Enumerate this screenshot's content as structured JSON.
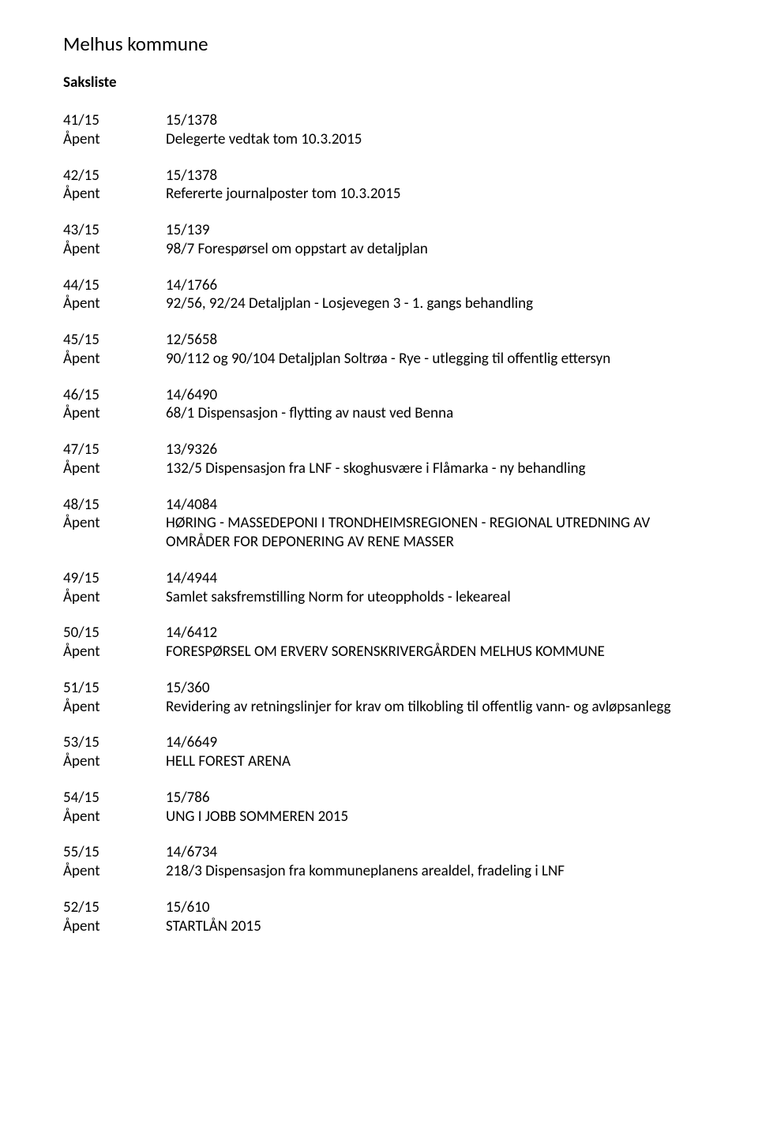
{
  "title": "Melhus kommune",
  "subtitle": "Saksliste",
  "items": [
    {
      "id": "41/15",
      "status": "Åpent",
      "ref": "15/1378",
      "desc": "Delegerte vedtak tom 10.3.2015"
    },
    {
      "id": "42/15",
      "status": "Åpent",
      "ref": "15/1378",
      "desc": "Refererte journalposter tom 10.3.2015"
    },
    {
      "id": "43/15",
      "status": "Åpent",
      "ref": "15/139",
      "desc": "98/7 Forespørsel om oppstart av detaljplan"
    },
    {
      "id": "44/15",
      "status": "Åpent",
      "ref": "14/1766",
      "desc": "92/56, 92/24 Detaljplan - Losjevegen 3 - 1. gangs behandling"
    },
    {
      "id": "45/15",
      "status": "Åpent",
      "ref": "12/5658",
      "desc": "90/112 og 90/104  Detaljplan Soltrøa - Rye - utlegging til offentlig ettersyn"
    },
    {
      "id": "46/15",
      "status": "Åpent",
      "ref": "14/6490",
      "desc": "68/1 Dispensasjon - flytting av naust ved Benna"
    },
    {
      "id": "47/15",
      "status": "Åpent",
      "ref": "13/9326",
      "desc": "132/5 Dispensasjon fra LNF - skoghusvære i Flåmarka - ny behandling"
    },
    {
      "id": "48/15",
      "status": "Åpent",
      "ref": "14/4084",
      "desc": "HØRING - MASSEDEPONI I TRONDHEIMSREGIONEN - REGIONAL UTREDNING AV OMRÅDER FOR DEPONERING AV RENE MASSER"
    },
    {
      "id": "49/15",
      "status": "Åpent",
      "ref": "14/4944",
      "desc": "Samlet saksfremstilling Norm for uteoppholds - lekeareal"
    },
    {
      "id": "50/15",
      "status": "Åpent",
      "ref": "14/6412",
      "desc": "FORESPØRSEL OM ERVERV SORENSKRIVERGÅRDEN MELHUS KOMMUNE"
    },
    {
      "id": "51/15",
      "status": "Åpent",
      "ref": "15/360",
      "desc": "Revidering av retningslinjer for krav om tilkobling til offentlig vann- og avløpsanlegg"
    },
    {
      "id": "53/15",
      "status": "Åpent",
      "ref": "14/6649",
      "desc": "HELL FOREST ARENA"
    },
    {
      "id": "54/15",
      "status": "Åpent",
      "ref": "15/786",
      "desc": "UNG I JOBB SOMMEREN 2015"
    },
    {
      "id": "55/15",
      "status": "Åpent",
      "ref": "14/6734",
      "desc": "218/3 Dispensasjon fra kommuneplanens arealdel, fradeling i LNF"
    },
    {
      "id": "52/15",
      "status": "Åpent",
      "ref": "15/610",
      "desc": "STARTLÅN  2015"
    }
  ]
}
